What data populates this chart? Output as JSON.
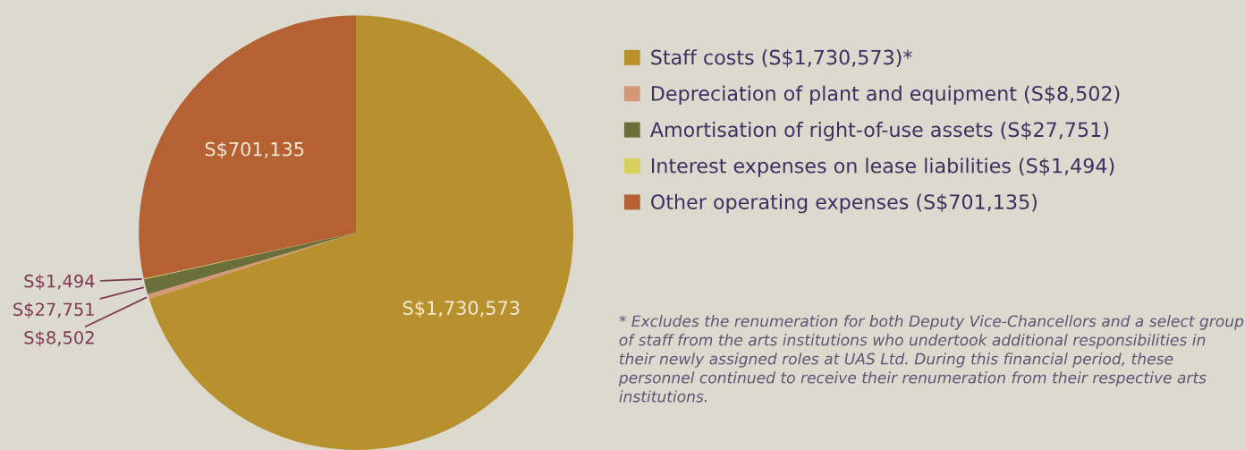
{
  "chart_data": {
    "type": "pie",
    "categories": [
      "Staff costs (S$1,730,573)*",
      "Depreciation of plant and equipment (S$8,502)",
      "Amortisation of right-of-use assets (S$27,751)",
      "Interest expenses on lease liabilities (S$1,494)",
      "Other operating expenses (S$701,135)"
    ],
    "values": [
      1730573,
      8502,
      27751,
      1494,
      701135
    ],
    "value_labels": [
      "S$1,730,573",
      "S$8,502",
      "S$27,751",
      "S$1,494",
      "S$701,135"
    ],
    "colors": [
      "#b8912f",
      "#d49777",
      "#6b703a",
      "#d6d05c",
      "#b56134"
    ],
    "legend": "right",
    "annotations": [
      "* Excludes the renumeration for both Deputy Vice-Chancellors and a select group of staff from the arts institutions who undertook additional responsibilities in their newly assigned roles at UAS Ltd. During this financial period, these personnel continued to receive their renumeration from their respective arts institutions."
    ]
  }
}
